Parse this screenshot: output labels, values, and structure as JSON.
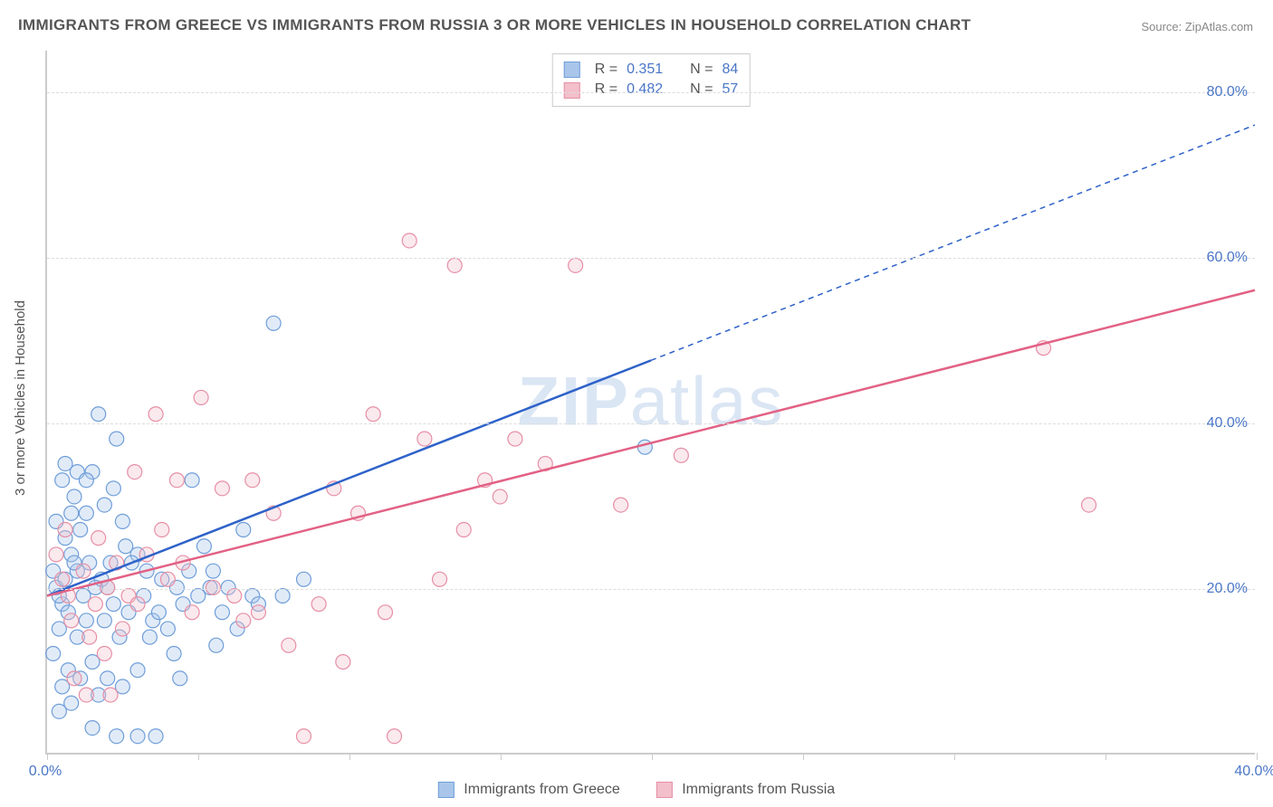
{
  "title_text": "IMMIGRANTS FROM GREECE VS IMMIGRANTS FROM RUSSIA 3 OR MORE VEHICLES IN HOUSEHOLD CORRELATION CHART",
  "source_text": "Source: ZipAtlas.com",
  "y_axis_label": "3 or more Vehicles in Household",
  "watermark_zip": "ZIP",
  "watermark_atlas": "atlas",
  "chart": {
    "type": "scatter",
    "background_color": "#ffffff",
    "grid_color": "#dddddd",
    "axis_color": "#cccccc",
    "tick_label_color": "#4a76c7",
    "axis_label_color": "#555555",
    "title_color": "#555555",
    "title_fontsize": 17,
    "label_fontsize": 15,
    "tick_fontsize": 16,
    "xlim": [
      0,
      40
    ],
    "ylim": [
      0,
      85
    ],
    "y_ticks": [
      20,
      40,
      60,
      80
    ],
    "y_tick_labels": [
      "20.0%",
      "40.0%",
      "60.0%",
      "80.0%"
    ],
    "x_ticks": [
      0,
      5,
      10,
      15,
      20,
      25,
      30,
      35,
      40
    ],
    "x_tick_labels": {
      "0": "0.0%",
      "40": "40.0%"
    },
    "marker_radius": 8,
    "marker_fill_opacity": 0.35,
    "marker_stroke_width": 1.2,
    "series": [
      {
        "name": "Immigrants from Greece",
        "color_fill": "#a9c6ea",
        "color_stroke": "#6f9ed9",
        "trend_color": "#2e62c9",
        "trend_width": 2.5,
        "trend_dash_after_x": 20,
        "trend_start": [
          0,
          19
        ],
        "trend_end": [
          40,
          76
        ],
        "R": "0.351",
        "N": "84",
        "points": [
          [
            0.2,
            22
          ],
          [
            0.3,
            20
          ],
          [
            0.5,
            18
          ],
          [
            0.6,
            21
          ],
          [
            0.8,
            24
          ],
          [
            0.4,
            19
          ],
          [
            1.0,
            22
          ],
          [
            1.2,
            19
          ],
          [
            0.7,
            17
          ],
          [
            1.5,
            34
          ],
          [
            1.0,
            34
          ],
          [
            1.7,
            41
          ],
          [
            1.3,
            33
          ],
          [
            0.5,
            33
          ],
          [
            2.3,
            38
          ],
          [
            1.8,
            21
          ],
          [
            2.0,
            20
          ],
          [
            2.2,
            18
          ],
          [
            1.0,
            14
          ],
          [
            1.3,
            16
          ],
          [
            1.5,
            11
          ],
          [
            2.0,
            9
          ],
          [
            2.5,
            8
          ],
          [
            0.5,
            8
          ],
          [
            0.8,
            6
          ],
          [
            3.0,
            2
          ],
          [
            2.3,
            2
          ],
          [
            1.5,
            3
          ],
          [
            3.5,
            16
          ],
          [
            3.3,
            22
          ],
          [
            3.0,
            24
          ],
          [
            3.8,
            21
          ],
          [
            4.0,
            15
          ],
          [
            4.2,
            12
          ],
          [
            4.5,
            18
          ],
          [
            3.0,
            10
          ],
          [
            5.0,
            19
          ],
          [
            5.5,
            22
          ],
          [
            5.8,
            17
          ],
          [
            6.0,
            20
          ],
          [
            5.2,
            25
          ],
          [
            6.5,
            27
          ],
          [
            6.8,
            19
          ],
          [
            4.8,
            33
          ],
          [
            7.0,
            18
          ],
          [
            7.5,
            52
          ],
          [
            7.8,
            19
          ],
          [
            8.5,
            21
          ],
          [
            3.6,
            2
          ],
          [
            19.8,
            37
          ],
          [
            0.3,
            28
          ],
          [
            0.8,
            29
          ],
          [
            1.1,
            27
          ],
          [
            1.4,
            23
          ],
          [
            0.6,
            26
          ],
          [
            0.9,
            23
          ],
          [
            1.6,
            20
          ],
          [
            2.1,
            23
          ],
          [
            0.4,
            15
          ],
          [
            0.7,
            10
          ],
          [
            1.9,
            16
          ],
          [
            2.4,
            14
          ],
          [
            2.7,
            17
          ],
          [
            0.2,
            12
          ],
          [
            1.1,
            9
          ],
          [
            2.8,
            23
          ],
          [
            2.6,
            25
          ],
          [
            3.2,
            19
          ],
          [
            3.7,
            17
          ],
          [
            4.3,
            20
          ],
          [
            4.7,
            22
          ],
          [
            5.4,
            20
          ],
          [
            0.6,
            35
          ],
          [
            1.9,
            30
          ],
          [
            2.2,
            32
          ],
          [
            0.9,
            31
          ],
          [
            1.3,
            29
          ],
          [
            2.5,
            28
          ],
          [
            3.4,
            14
          ],
          [
            4.4,
            9
          ],
          [
            1.7,
            7
          ],
          [
            0.4,
            5
          ],
          [
            5.6,
            13
          ],
          [
            6.3,
            15
          ]
        ]
      },
      {
        "name": "Immigrants from Russia",
        "color_fill": "#f2bfca",
        "color_stroke": "#e78fa5",
        "trend_color": "#e26184",
        "trend_width": 2.5,
        "trend_dash_after_x": 40,
        "trend_start": [
          0,
          19
        ],
        "trend_end": [
          40,
          56
        ],
        "R": "0.482",
        "N": "57",
        "points": [
          [
            0.5,
            21
          ],
          [
            0.7,
            19
          ],
          [
            1.2,
            22
          ],
          [
            1.6,
            18
          ],
          [
            2.0,
            20
          ],
          [
            2.3,
            23
          ],
          [
            2.7,
            19
          ],
          [
            0.8,
            16
          ],
          [
            1.4,
            14
          ],
          [
            1.9,
            12
          ],
          [
            2.5,
            15
          ],
          [
            3.0,
            18
          ],
          [
            3.3,
            24
          ],
          [
            3.6,
            41
          ],
          [
            4.0,
            21
          ],
          [
            4.5,
            23
          ],
          [
            4.8,
            17
          ],
          [
            5.5,
            20
          ],
          [
            5.8,
            32
          ],
          [
            6.2,
            19
          ],
          [
            6.5,
            16
          ],
          [
            7.0,
            17
          ],
          [
            7.5,
            29
          ],
          [
            8.0,
            13
          ],
          [
            8.5,
            2
          ],
          [
            9.0,
            18
          ],
          [
            9.5,
            32
          ],
          [
            9.8,
            11
          ],
          [
            10.3,
            29
          ],
          [
            10.8,
            41
          ],
          [
            11.2,
            17
          ],
          [
            11.5,
            2
          ],
          [
            12.0,
            62
          ],
          [
            12.5,
            38
          ],
          [
            13.0,
            21
          ],
          [
            13.5,
            59
          ],
          [
            13.8,
            27
          ],
          [
            14.5,
            33
          ],
          [
            15.0,
            31
          ],
          [
            15.5,
            38
          ],
          [
            16.5,
            35
          ],
          [
            17.5,
            59
          ],
          [
            19.0,
            30
          ],
          [
            21.0,
            36
          ],
          [
            33.0,
            49
          ],
          [
            34.5,
            30
          ],
          [
            0.9,
            9
          ],
          [
            1.3,
            7
          ],
          [
            2.1,
            7
          ],
          [
            0.3,
            24
          ],
          [
            0.6,
            27
          ],
          [
            1.7,
            26
          ],
          [
            3.8,
            27
          ],
          [
            4.3,
            33
          ],
          [
            5.1,
            43
          ],
          [
            6.8,
            33
          ],
          [
            2.9,
            34
          ]
        ]
      }
    ]
  },
  "stat_legend": {
    "R_label": "R =",
    "N_label": "N ="
  },
  "bottom_legend": {
    "series1_label": "Immigrants from Greece",
    "series2_label": "Immigrants from Russia"
  }
}
